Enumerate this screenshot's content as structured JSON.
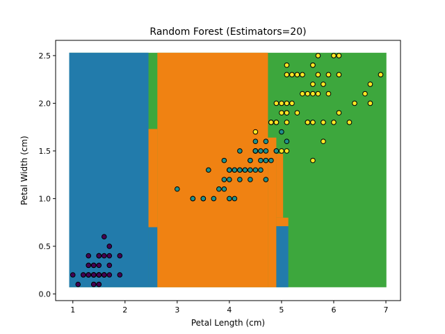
{
  "chart_data": {
    "type": "scatter",
    "title": "Random Forest (Estimators=20)",
    "xlabel": "Petal Length (cm)",
    "ylabel": "Petal Width (cm)",
    "xlim": [
      0.67,
      7.28
    ],
    "ylim": [
      -0.07,
      2.66
    ],
    "xticks": [
      1,
      2,
      3,
      4,
      5,
      6,
      7
    ],
    "xtick_labels": [
      "1",
      "2",
      "3",
      "4",
      "5",
      "6",
      "7"
    ],
    "yticks": [
      0.0,
      0.5,
      1.0,
      1.5,
      2.0,
      2.5
    ],
    "ytick_labels": [
      "0.0",
      "0.5",
      "1.0",
      "1.5",
      "2.0",
      "2.5"
    ],
    "grid": false,
    "region_colors": {
      "0": "#1f77b4",
      "1": "#ff7f0e",
      "2": "#2ca02c"
    },
    "decision_regions": [
      {
        "class": 2,
        "x": [
          0.93,
          7.01
        ],
        "y": [
          0.07,
          2.53
        ]
      },
      {
        "class": 0,
        "x": [
          0.93,
          2.45
        ],
        "y": [
          0.07,
          2.53
        ]
      },
      {
        "class": 1,
        "x": [
          2.45,
          2.62
        ],
        "y": [
          0.7,
          1.73
        ]
      },
      {
        "class": 0,
        "x": [
          2.45,
          2.62
        ],
        "y": [
          0.07,
          0.7
        ]
      },
      {
        "class": 1,
        "x": [
          2.62,
          4.74
        ],
        "y": [
          0.07,
          2.53
        ]
      },
      {
        "class": 1,
        "x": [
          4.74,
          4.9
        ],
        "y": [
          0.07,
          1.64
        ]
      },
      {
        "class": 1,
        "x": [
          4.9,
          5.03
        ],
        "y": [
          0.8,
          1.47
        ]
      },
      {
        "class": 1,
        "x": [
          4.9,
          5.13
        ],
        "y": [
          0.71,
          0.8
        ]
      },
      {
        "class": 0,
        "x": [
          4.9,
          5.13
        ],
        "y": [
          0.07,
          0.71
        ]
      }
    ],
    "series": [
      {
        "class": 0,
        "color": "#440154",
        "points": [
          [
            1.4,
            0.2
          ],
          [
            1.4,
            0.2
          ],
          [
            1.3,
            0.2
          ],
          [
            1.5,
            0.2
          ],
          [
            1.4,
            0.2
          ],
          [
            1.7,
            0.4
          ],
          [
            1.4,
            0.3
          ],
          [
            1.5,
            0.2
          ],
          [
            1.4,
            0.2
          ],
          [
            1.5,
            0.1
          ],
          [
            1.5,
            0.2
          ],
          [
            1.6,
            0.2
          ],
          [
            1.4,
            0.1
          ],
          [
            1.1,
            0.1
          ],
          [
            1.2,
            0.2
          ],
          [
            1.5,
            0.4
          ],
          [
            1.3,
            0.4
          ],
          [
            1.4,
            0.3
          ],
          [
            1.7,
            0.3
          ],
          [
            1.5,
            0.3
          ],
          [
            1.7,
            0.2
          ],
          [
            1.5,
            0.4
          ],
          [
            1.0,
            0.2
          ],
          [
            1.7,
            0.5
          ],
          [
            1.9,
            0.2
          ],
          [
            1.6,
            0.2
          ],
          [
            1.6,
            0.4
          ],
          [
            1.5,
            0.2
          ],
          [
            1.4,
            0.2
          ],
          [
            1.6,
            0.2
          ],
          [
            1.6,
            0.2
          ],
          [
            1.5,
            0.4
          ],
          [
            1.5,
            0.1
          ],
          [
            1.4,
            0.2
          ],
          [
            1.5,
            0.2
          ],
          [
            1.2,
            0.2
          ],
          [
            1.3,
            0.2
          ],
          [
            1.4,
            0.1
          ],
          [
            1.3,
            0.2
          ],
          [
            1.5,
            0.2
          ],
          [
            1.3,
            0.3
          ],
          [
            1.3,
            0.3
          ],
          [
            1.3,
            0.2
          ],
          [
            1.6,
            0.6
          ],
          [
            1.9,
            0.4
          ],
          [
            1.4,
            0.3
          ],
          [
            1.6,
            0.2
          ],
          [
            1.4,
            0.2
          ],
          [
            1.5,
            0.2
          ],
          [
            1.4,
            0.2
          ]
        ]
      },
      {
        "class": 1,
        "color": "#21918c",
        "points": [
          [
            4.7,
            1.4
          ],
          [
            4.5,
            1.5
          ],
          [
            4.9,
            1.5
          ],
          [
            4.0,
            1.3
          ],
          [
            4.6,
            1.5
          ],
          [
            4.5,
            1.3
          ],
          [
            4.7,
            1.6
          ],
          [
            3.3,
            1.0
          ],
          [
            4.6,
            1.3
          ],
          [
            3.9,
            1.4
          ],
          [
            3.5,
            1.0
          ],
          [
            4.2,
            1.5
          ],
          [
            4.0,
            1.0
          ],
          [
            4.7,
            1.4
          ],
          [
            3.6,
            1.3
          ],
          [
            4.4,
            1.4
          ],
          [
            4.5,
            1.5
          ],
          [
            4.1,
            1.0
          ],
          [
            4.5,
            1.5
          ],
          [
            3.9,
            1.1
          ],
          [
            4.8,
            1.8
          ],
          [
            4.0,
            1.3
          ],
          [
            4.9,
            1.5
          ],
          [
            4.7,
            1.2
          ],
          [
            4.3,
            1.3
          ],
          [
            4.4,
            1.4
          ],
          [
            4.8,
            1.4
          ],
          [
            5.0,
            1.7
          ],
          [
            4.5,
            1.5
          ],
          [
            3.5,
            1.0
          ],
          [
            3.8,
            1.1
          ],
          [
            3.7,
            1.0
          ],
          [
            3.9,
            1.2
          ],
          [
            5.1,
            1.6
          ],
          [
            4.5,
            1.5
          ],
          [
            4.5,
            1.6
          ],
          [
            4.7,
            1.5
          ],
          [
            4.4,
            1.3
          ],
          [
            4.1,
            1.3
          ],
          [
            4.0,
            1.3
          ],
          [
            4.4,
            1.2
          ],
          [
            4.6,
            1.4
          ],
          [
            4.0,
            1.2
          ],
          [
            3.3,
            1.0
          ],
          [
            4.2,
            1.3
          ],
          [
            4.2,
            1.2
          ],
          [
            4.2,
            1.3
          ],
          [
            4.3,
            1.3
          ],
          [
            3.0,
            1.1
          ],
          [
            4.1,
            1.3
          ]
        ]
      },
      {
        "class": 2,
        "color": "#fde725",
        "points": [
          [
            6.0,
            2.5
          ],
          [
            5.1,
            1.9
          ],
          [
            5.9,
            2.1
          ],
          [
            5.6,
            1.8
          ],
          [
            5.8,
            2.2
          ],
          [
            6.6,
            2.1
          ],
          [
            4.5,
            1.7
          ],
          [
            6.3,
            1.8
          ],
          [
            5.8,
            1.8
          ],
          [
            6.1,
            2.5
          ],
          [
            5.1,
            2.0
          ],
          [
            5.3,
            1.9
          ],
          [
            5.5,
            2.1
          ],
          [
            5.0,
            2.0
          ],
          [
            5.1,
            2.4
          ],
          [
            5.3,
            2.3
          ],
          [
            5.5,
            1.8
          ],
          [
            6.7,
            2.2
          ],
          [
            6.9,
            2.3
          ],
          [
            5.0,
            1.5
          ],
          [
            5.7,
            2.3
          ],
          [
            4.9,
            2.0
          ],
          [
            6.7,
            2.0
          ],
          [
            4.9,
            1.8
          ],
          [
            5.7,
            2.1
          ],
          [
            6.0,
            1.8
          ],
          [
            4.8,
            1.8
          ],
          [
            4.9,
            1.8
          ],
          [
            5.6,
            2.1
          ],
          [
            5.8,
            1.6
          ],
          [
            6.1,
            1.9
          ],
          [
            6.4,
            2.0
          ],
          [
            5.6,
            2.2
          ],
          [
            5.1,
            1.5
          ],
          [
            5.6,
            1.4
          ],
          [
            6.1,
            2.3
          ],
          [
            5.6,
            2.4
          ],
          [
            5.5,
            1.8
          ],
          [
            4.8,
            1.8
          ],
          [
            5.4,
            2.1
          ],
          [
            5.6,
            2.4
          ],
          [
            5.1,
            2.3
          ],
          [
            5.1,
            1.9
          ],
          [
            5.9,
            2.3
          ],
          [
            5.7,
            2.5
          ],
          [
            5.2,
            2.3
          ],
          [
            5.0,
            1.9
          ],
          [
            5.2,
            2.0
          ],
          [
            5.4,
            2.3
          ],
          [
            5.1,
            1.8
          ]
        ]
      }
    ]
  }
}
